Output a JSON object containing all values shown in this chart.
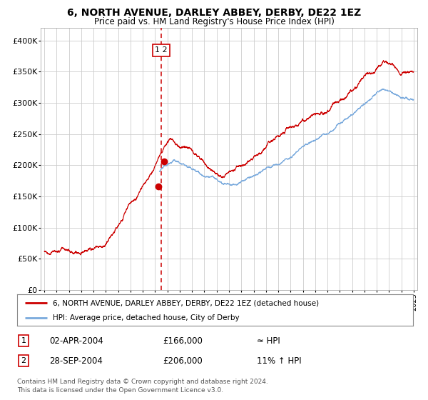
{
  "title1": "6, NORTH AVENUE, DARLEY ABBEY, DERBY, DE22 1EZ",
  "title2": "Price paid vs. HM Land Registry's House Price Index (HPI)",
  "legend_red": "6, NORTH AVENUE, DARLEY ABBEY, DERBY, DE22 1EZ (detached house)",
  "legend_blue": "HPI: Average price, detached house, City of Derby",
  "table_rows": [
    {
      "num": "1",
      "date": "02-APR-2004",
      "price": "£166,000",
      "hpi": "≈ HPI"
    },
    {
      "num": "2",
      "date": "28-SEP-2004",
      "price": "£206,000",
      "hpi": "11% ↑ HPI"
    }
  ],
  "footnote1": "Contains HM Land Registry data © Crown copyright and database right 2024.",
  "footnote2": "This data is licensed under the Open Government Licence v3.0.",
  "ylim": [
    0,
    420000
  ],
  "yticks": [
    0,
    50000,
    100000,
    150000,
    200000,
    250000,
    300000,
    350000,
    400000
  ],
  "ytick_labels": [
    "£0",
    "£50K",
    "£100K",
    "£150K",
    "£200K",
    "£250K",
    "£300K",
    "£350K",
    "£400K"
  ],
  "red_color": "#cc0000",
  "blue_color": "#7aaadd",
  "marker_color": "#cc0000",
  "vline_color": "#cc0000",
  "box_color": "#cc0000",
  "grid_color": "#cccccc",
  "bg_color": "#ffffff",
  "sale1_year": 2004.25,
  "sale1_value": 166000,
  "sale2_year": 2004.75,
  "sale2_value": 206000,
  "vline_x": 2004.5,
  "xstart": 1995,
  "xend": 2025
}
